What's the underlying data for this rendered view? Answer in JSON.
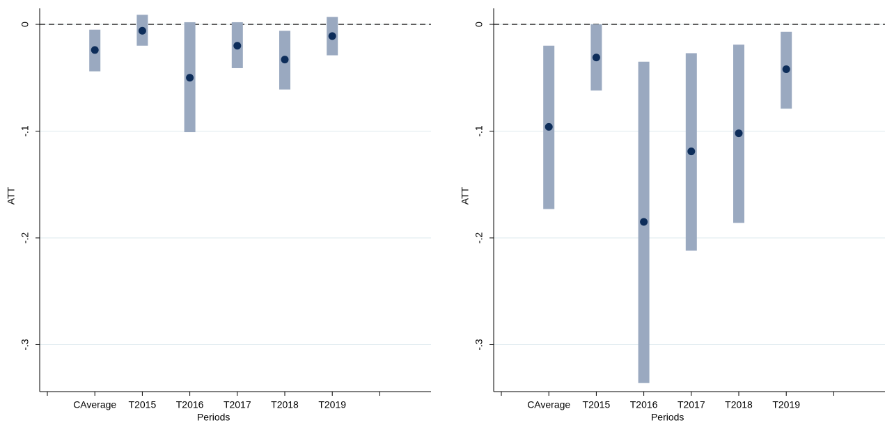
{
  "chart_data": [
    {
      "type": "errorbar",
      "y_label": "ATT",
      "x_label": "Periods",
      "categories": [
        null,
        "CAverage",
        "T2015",
        "T2016",
        "T2017",
        "T2018",
        "T2019",
        null
      ],
      "values": [
        null,
        -0.024,
        -0.006,
        -0.05,
        -0.02,
        -0.033,
        -0.011,
        null
      ],
      "lower": [
        null,
        -0.044,
        -0.02,
        -0.101,
        -0.041,
        -0.061,
        -0.029,
        null
      ],
      "upper": [
        null,
        -0.005,
        0.009,
        0.002,
        0.002,
        -0.006,
        0.007,
        null
      ],
      "point_color": "#0d2d5a",
      "bar_color": "#9aa9c0",
      "ylim": [
        -0.344,
        0.015
      ],
      "yticks": [
        0,
        {
          "value": -0.1,
          "label": "-.1"
        },
        {
          "value": -0.2,
          "label": "-.2"
        },
        {
          "value": -0.3,
          "label": "-.3"
        }
      ],
      "grid": true,
      "refline": 0
    },
    {
      "type": "errorbar",
      "y_label": "ATT",
      "x_label": "Periods",
      "categories": [
        null,
        "CAverage",
        "T2015",
        "T2016",
        "T2017",
        "T2018",
        "T2019",
        null
      ],
      "values": [
        null,
        -0.096,
        -0.031,
        -0.185,
        -0.119,
        -0.102,
        -0.042,
        null
      ],
      "lower": [
        null,
        -0.173,
        -0.062,
        -0.336,
        -0.212,
        -0.186,
        -0.079,
        null
      ],
      "upper": [
        null,
        -0.02,
        0.0,
        -0.035,
        -0.027,
        -0.019,
        -0.007,
        null
      ],
      "point_color": "#0d2d5a",
      "bar_color": "#9aa9c0",
      "ylim": [
        -0.344,
        0.015
      ],
      "yticks": [
        0,
        {
          "value": -0.1,
          "label": "-.1"
        },
        {
          "value": -0.2,
          "label": "-.2"
        },
        {
          "value": -0.3,
          "label": "-.3"
        }
      ],
      "grid": true,
      "refline": 0
    }
  ]
}
